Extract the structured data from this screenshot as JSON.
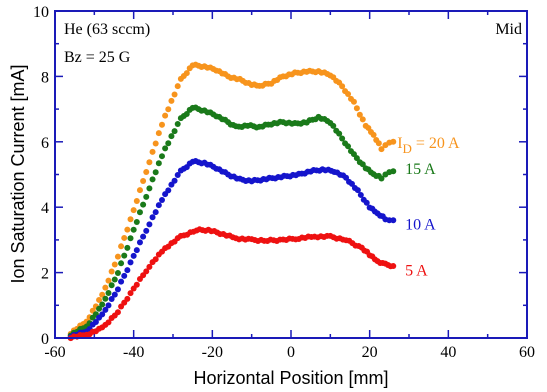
{
  "chart_data": {
    "type": "scatter",
    "xlabel": "Horizontal Position [mm]",
    "ylabel": "Ion Saturation Current [mA]",
    "xlim": [
      -60,
      60
    ],
    "ylim": [
      0,
      10
    ],
    "x_ticks": [
      -60,
      -40,
      -20,
      0,
      20,
      40,
      60
    ],
    "y_ticks": [
      0,
      2,
      4,
      6,
      8,
      10
    ],
    "grid": false,
    "annotations": {
      "gas": "He (63 sccm)",
      "field": "Bz = 25 G",
      "location": "Mid"
    },
    "series": [
      {
        "name": "I_D = 20 A",
        "label_prefix": "I",
        "label_subscript": "D",
        "label_suffix": " = 20 A",
        "color": "#f7941d",
        "label_at": [
          27,
          6.0
        ],
        "points": [
          [
            -56,
            0.15
          ],
          [
            -52,
            0.5
          ],
          [
            -48,
            1.3
          ],
          [
            -44,
            2.5
          ],
          [
            -40,
            3.9
          ],
          [
            -36,
            5.4
          ],
          [
            -32,
            6.8
          ],
          [
            -28,
            7.9
          ],
          [
            -25,
            8.35
          ],
          [
            -22,
            8.3
          ],
          [
            -19,
            8.2
          ],
          [
            -16,
            8.0
          ],
          [
            -13,
            7.9
          ],
          [
            -10,
            7.75
          ],
          [
            -8,
            7.7
          ],
          [
            -5,
            7.8
          ],
          [
            -2,
            8.0
          ],
          [
            1,
            8.1
          ],
          [
            4,
            8.15
          ],
          [
            7,
            8.15
          ],
          [
            10,
            8.05
          ],
          [
            13,
            7.7
          ],
          [
            16,
            7.2
          ],
          [
            19,
            6.5
          ],
          [
            21,
            6.2
          ],
          [
            23,
            5.8
          ],
          [
            24,
            5.9
          ],
          [
            25,
            5.95
          ],
          [
            26,
            6.0
          ]
        ]
      },
      {
        "name": "15 A",
        "color": "#1a7a1a",
        "label_at": [
          29,
          5.2
        ],
        "points": [
          [
            -56,
            0.1
          ],
          [
            -52,
            0.35
          ],
          [
            -48,
            1.0
          ],
          [
            -44,
            2.0
          ],
          [
            -40,
            3.3
          ],
          [
            -36,
            4.6
          ],
          [
            -32,
            5.8
          ],
          [
            -28,
            6.7
          ],
          [
            -25,
            7.05
          ],
          [
            -22,
            6.95
          ],
          [
            -19,
            6.8
          ],
          [
            -16,
            6.6
          ],
          [
            -14,
            6.45
          ],
          [
            -11,
            6.5
          ],
          [
            -8,
            6.45
          ],
          [
            -5,
            6.55
          ],
          [
            -2,
            6.6
          ],
          [
            1,
            6.55
          ],
          [
            4,
            6.6
          ],
          [
            7,
            6.75
          ],
          [
            10,
            6.6
          ],
          [
            13,
            6.1
          ],
          [
            16,
            5.6
          ],
          [
            19,
            5.2
          ],
          [
            21,
            5.0
          ],
          [
            23,
            4.9
          ],
          [
            24,
            5.0
          ],
          [
            25,
            5.05
          ],
          [
            26,
            5.1
          ]
        ]
      },
      {
        "name": "10 A",
        "color": "#1515cc",
        "label_at": [
          29,
          3.5
        ],
        "points": [
          [
            -56,
            0.05
          ],
          [
            -52,
            0.2
          ],
          [
            -48,
            0.7
          ],
          [
            -44,
            1.5
          ],
          [
            -40,
            2.5
          ],
          [
            -36,
            3.5
          ],
          [
            -32,
            4.4
          ],
          [
            -28,
            5.1
          ],
          [
            -25,
            5.4
          ],
          [
            -22,
            5.35
          ],
          [
            -19,
            5.2
          ],
          [
            -16,
            5.0
          ],
          [
            -13,
            4.85
          ],
          [
            -10,
            4.8
          ],
          [
            -7,
            4.85
          ],
          [
            -4,
            4.9
          ],
          [
            -1,
            4.95
          ],
          [
            2,
            5.0
          ],
          [
            5,
            5.1
          ],
          [
            8,
            5.15
          ],
          [
            11,
            5.1
          ],
          [
            14,
            4.9
          ],
          [
            17,
            4.5
          ],
          [
            20,
            4.0
          ],
          [
            22,
            3.8
          ],
          [
            24,
            3.65
          ],
          [
            25,
            3.6
          ],
          [
            26,
            3.6
          ]
        ]
      },
      {
        "name": "5 A",
        "color": "#ee1111",
        "label_at": [
          29,
          2.1
        ],
        "points": [
          [
            -56,
            0.02
          ],
          [
            -52,
            0.1
          ],
          [
            -48,
            0.3
          ],
          [
            -44,
            0.8
          ],
          [
            -40,
            1.5
          ],
          [
            -36,
            2.2
          ],
          [
            -32,
            2.75
          ],
          [
            -28,
            3.1
          ],
          [
            -24,
            3.3
          ],
          [
            -21,
            3.3
          ],
          [
            -18,
            3.2
          ],
          [
            -14,
            3.05
          ],
          [
            -10,
            3.0
          ],
          [
            -6,
            2.98
          ],
          [
            -2,
            3.0
          ],
          [
            2,
            3.05
          ],
          [
            6,
            3.1
          ],
          [
            10,
            3.1
          ],
          [
            14,
            3.0
          ],
          [
            18,
            2.75
          ],
          [
            20,
            2.55
          ],
          [
            22,
            2.35
          ],
          [
            24,
            2.25
          ],
          [
            26,
            2.2
          ]
        ]
      }
    ]
  }
}
